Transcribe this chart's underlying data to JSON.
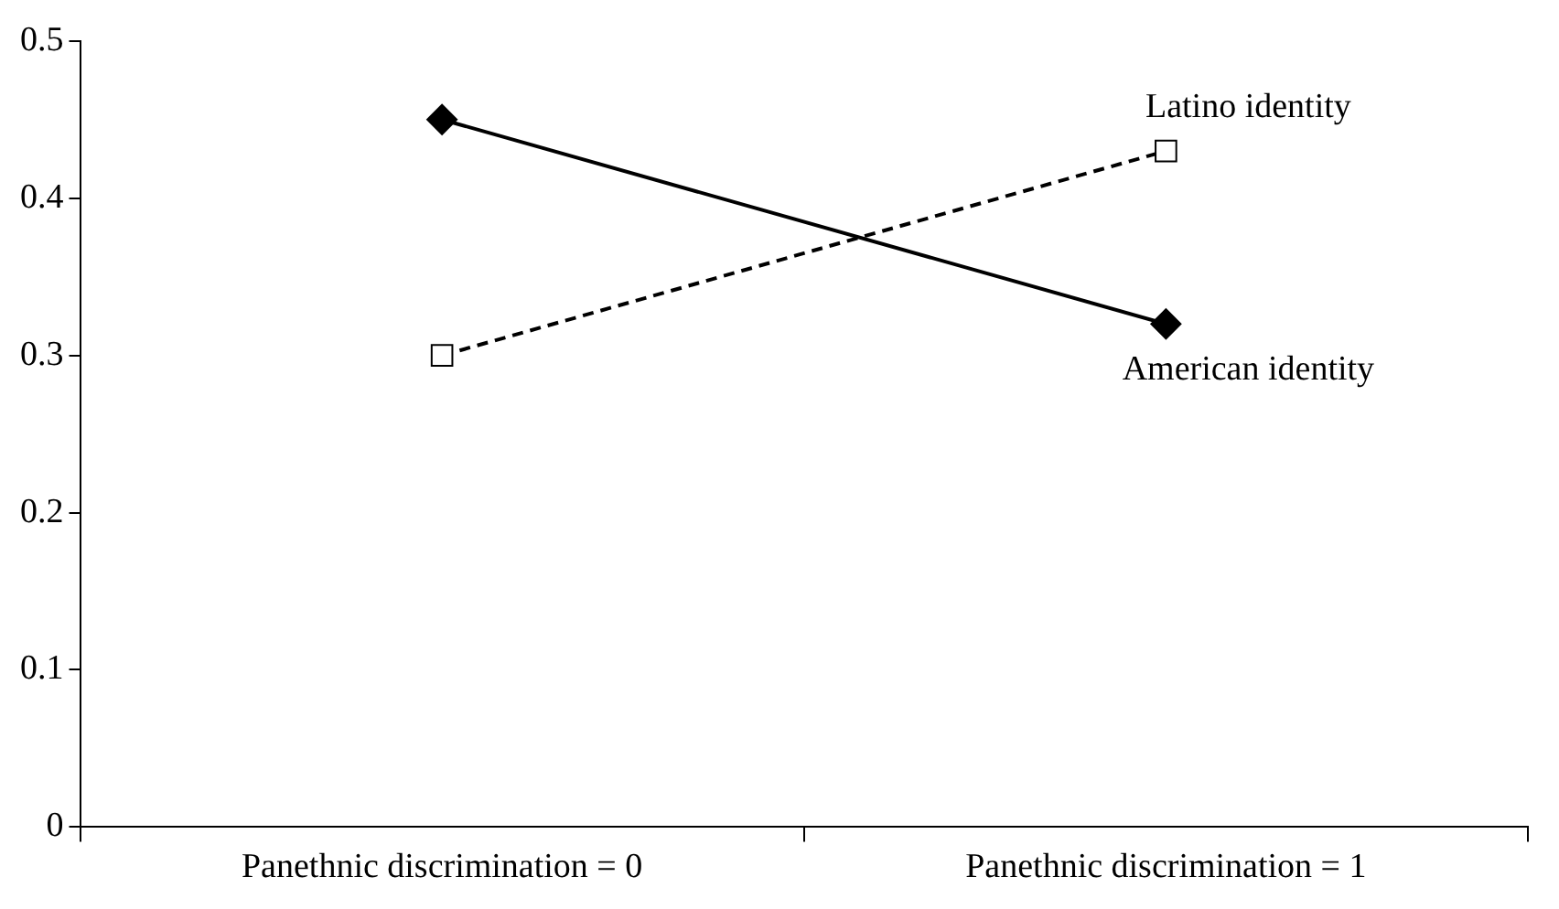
{
  "chart_data": {
    "type": "line",
    "categories": [
      "Panethnic discrimination = 0",
      "Panethnic discrimination = 1"
    ],
    "series": [
      {
        "name": "American identity",
        "color": "#000000",
        "values": [
          0.45,
          0.32
        ],
        "marker": "diamond",
        "line_style": "solid"
      },
      {
        "name": "Latino identity",
        "color": "#000000",
        "values": [
          0.3,
          0.43
        ],
        "marker": "square",
        "line_style": "dashed"
      }
    ],
    "ylim": [
      0,
      0.5
    ],
    "yticks": [
      0,
      0.1,
      0.2,
      0.3,
      0.4,
      0.5
    ],
    "grid": false,
    "legend": false
  }
}
